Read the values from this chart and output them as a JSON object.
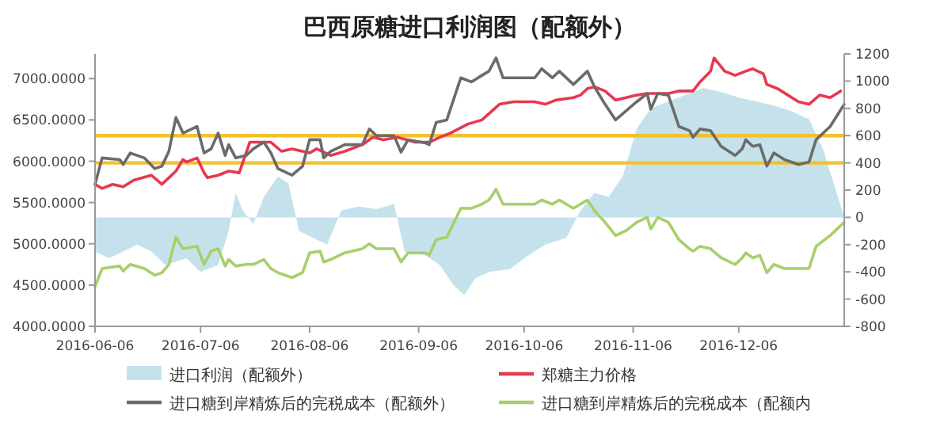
{
  "chart_data": {
    "type": "line",
    "title": "巴西原糖进口利润图（配额外）",
    "x": [
      "2016-06-06",
      "2016-06-08",
      "2016-06-13",
      "2016-06-14",
      "2016-06-16",
      "2016-06-20",
      "2016-06-23",
      "2016-06-25",
      "2016-06-27",
      "2016-06-29",
      "2016-07-01",
      "2016-07-05",
      "2016-07-07",
      "2016-07-09",
      "2016-07-11",
      "2016-07-13",
      "2016-07-14",
      "2016-07-16",
      "2016-07-19",
      "2016-07-21",
      "2016-07-24",
      "2016-07-26",
      "2016-07-28",
      "2016-08-01",
      "2016-08-04",
      "2016-08-06",
      "2016-08-09",
      "2016-08-10",
      "2016-08-12",
      "2016-08-16",
      "2016-08-21",
      "2016-08-23",
      "2016-08-25",
      "2016-08-30",
      "2016-09-01",
      "2016-09-03",
      "2016-09-08",
      "2016-09-09",
      "2016-09-11",
      "2016-09-14",
      "2016-09-18",
      "2016-09-21",
      "2016-09-24",
      "2016-09-26",
      "2016-09-28",
      "2016-09-30",
      "2016-10-05",
      "2016-10-09",
      "2016-10-11",
      "2016-10-14",
      "2016-10-16",
      "2016-10-20",
      "2016-10-24",
      "2016-10-26",
      "2016-10-29",
      "2016-11-01",
      "2016-11-04",
      "2016-11-07",
      "2016-11-10",
      "2016-11-11",
      "2016-11-13",
      "2016-11-16",
      "2016-11-19",
      "2016-11-22",
      "2016-11-23",
      "2016-11-25",
      "2016-11-28",
      "2016-12-01",
      "2016-12-05",
      "2016-12-07",
      "2016-12-08",
      "2016-12-10",
      "2016-12-12",
      "2016-12-14",
      "2016-12-16",
      "2016-12-19",
      "2016-12-23",
      "2016-12-26",
      "2016-12-28",
      "2017-01-01",
      "2017-01-05"
    ],
    "series": [
      {
        "name": "进口利润（配额外）",
        "type": "area",
        "axis": "y2",
        "color": "#c5e2ec",
        "x": [
          "2016-06-06",
          "2016-06-10",
          "2016-06-14",
          "2016-06-18",
          "2016-06-22",
          "2016-06-26",
          "2016-07-02",
          "2016-07-06",
          "2016-07-11",
          "2016-07-14",
          "2016-07-16",
          "2016-07-18",
          "2016-07-21",
          "2016-07-24",
          "2016-07-28",
          "2016-07-31",
          "2016-08-03",
          "2016-08-07",
          "2016-08-11",
          "2016-08-15",
          "2016-08-20",
          "2016-08-25",
          "2016-08-30",
          "2016-09-02",
          "2016-09-08",
          "2016-09-12",
          "2016-09-16",
          "2016-09-19",
          "2016-09-22",
          "2016-09-26",
          "2016-10-02",
          "2016-10-06",
          "2016-10-12",
          "2016-10-18",
          "2016-10-22",
          "2016-10-26",
          "2016-10-30",
          "2016-11-03",
          "2016-11-07",
          "2016-11-11",
          "2016-11-16",
          "2016-11-21",
          "2016-11-26",
          "2016-12-01",
          "2016-12-06",
          "2016-12-11",
          "2016-12-16",
          "2016-12-21",
          "2016-12-26",
          "2016-12-30",
          "2017-01-02",
          "2017-01-05"
        ],
        "values": [
          -250,
          -300,
          -250,
          -200,
          -250,
          -350,
          -300,
          -400,
          -350,
          -100,
          180,
          50,
          -50,
          150,
          300,
          250,
          -100,
          -150,
          -200,
          50,
          80,
          60,
          100,
          -250,
          -280,
          -350,
          -500,
          -570,
          -450,
          -400,
          -380,
          -300,
          -200,
          -150,
          50,
          180,
          150,
          300,
          650,
          800,
          850,
          900,
          950,
          920,
          880,
          850,
          820,
          780,
          720,
          500,
          250,
          0
        ]
      },
      {
        "name": "郑糖主力价格",
        "color": "#e8384f",
        "x": [
          "2016-06-06",
          "2016-06-08",
          "2016-06-11",
          "2016-06-14",
          "2016-06-17",
          "2016-06-22",
          "2016-06-25",
          "2016-06-27",
          "2016-06-29",
          "2016-07-01",
          "2016-07-02",
          "2016-07-05",
          "2016-07-07",
          "2016-07-08",
          "2016-07-11",
          "2016-07-14",
          "2016-07-17",
          "2016-07-20",
          "2016-07-23",
          "2016-07-26",
          "2016-07-29",
          "2016-08-01",
          "2016-08-06",
          "2016-08-08",
          "2016-08-12",
          "2016-08-16",
          "2016-08-21",
          "2016-08-24",
          "2016-08-27",
          "2016-08-31",
          "2016-09-05",
          "2016-09-09",
          "2016-09-12",
          "2016-09-15",
          "2016-09-20",
          "2016-09-24",
          "2016-09-29",
          "2016-10-03",
          "2016-10-09",
          "2016-10-12",
          "2016-10-15",
          "2016-10-20",
          "2016-10-22",
          "2016-10-24",
          "2016-10-26",
          "2016-10-29",
          "2016-11-01",
          "2016-11-04",
          "2016-11-07",
          "2016-11-10",
          "2016-11-13",
          "2016-11-16",
          "2016-11-19",
          "2016-11-23",
          "2016-11-25",
          "2016-11-28",
          "2016-11-29",
          "2016-12-02",
          "2016-12-05",
          "2016-12-08",
          "2016-12-10",
          "2016-12-13",
          "2016-12-14",
          "2016-12-17",
          "2016-12-20",
          "2016-12-23",
          "2016-12-26",
          "2016-12-29",
          "2017-01-01",
          "2017-01-04"
        ],
        "values": [
          5720,
          5670,
          5720,
          5690,
          5770,
          5830,
          5720,
          5800,
          5880,
          6020,
          5990,
          6040,
          5860,
          5800,
          5830,
          5880,
          5860,
          6230,
          6230,
          6230,
          6120,
          6150,
          6100,
          6150,
          6070,
          6120,
          6200,
          6290,
          6260,
          6290,
          6230,
          6230,
          6290,
          6340,
          6450,
          6500,
          6690,
          6720,
          6720,
          6690,
          6740,
          6770,
          6800,
          6880,
          6900,
          6850,
          6740,
          6770,
          6800,
          6820,
          6820,
          6820,
          6850,
          6850,
          6960,
          7090,
          7250,
          7090,
          7040,
          7090,
          7120,
          7060,
          6930,
          6880,
          6800,
          6720,
          6690,
          6800,
          6770,
          6850
        ]
      },
      {
        "name": "进口糖到岸精炼后的完税成本（配额外）",
        "color": "#6b6b6b",
        "values": [
          5720,
          6040,
          6020,
          5960,
          6100,
          6040,
          5910,
          5940,
          6120,
          6530,
          6340,
          6420,
          6100,
          6150,
          6340,
          6070,
          6200,
          6040,
          6070,
          6150,
          6230,
          6100,
          5910,
          5830,
          5940,
          6260,
          6260,
          6040,
          6120,
          6200,
          6200,
          6390,
          6310,
          6310,
          6110,
          6260,
          6220,
          6200,
          6470,
          6500,
          7010,
          6960,
          7040,
          7090,
          7250,
          7010,
          7010,
          7010,
          7120,
          7010,
          7090,
          6930,
          7090,
          6900,
          6690,
          6500,
          6610,
          6720,
          6820,
          6630,
          6820,
          6800,
          6420,
          6370,
          6290,
          6390,
          6370,
          6180,
          6070,
          6150,
          6260,
          6180,
          6200,
          5940,
          6100,
          6020,
          5960,
          5990,
          6260,
          6420,
          6690
        ]
      },
      {
        "name": "进口糖到岸精炼后的完税成本（配额内",
        "color": "#a8cf6a",
        "values": [
          4480,
          4700,
          4730,
          4670,
          4750,
          4700,
          4620,
          4650,
          4750,
          5080,
          4940,
          4970,
          4750,
          4910,
          4940,
          4730,
          4810,
          4730,
          4750,
          4750,
          4810,
          4700,
          4650,
          4590,
          4650,
          4890,
          4910,
          4780,
          4810,
          4890,
          4940,
          5000,
          4940,
          4940,
          4780,
          4890,
          4890,
          4860,
          5050,
          5080,
          5430,
          5430,
          5480,
          5530,
          5660,
          5480,
          5480,
          5480,
          5530,
          5480,
          5530,
          5430,
          5530,
          5400,
          5260,
          5100,
          5160,
          5260,
          5320,
          5180,
          5320,
          5260,
          5050,
          4940,
          4910,
          4970,
          4940,
          4830,
          4750,
          4830,
          4890,
          4830,
          4860,
          4650,
          4750,
          4700,
          4700,
          4700,
          4970,
          5100,
          5260
        ]
      }
    ],
    "xlim": [
      "2016-06-06",
      "2017-01-05"
    ],
    "xticks": [
      "2016-06-06",
      "2016-07-06",
      "2016-08-06",
      "2016-09-06",
      "2016-10-06",
      "2016-11-06",
      "2016-12-06"
    ],
    "ylim": [
      4000,
      7300
    ],
    "yticks": [
      {
        "value": 4000,
        "label": "4000.0000"
      },
      {
        "value": 4500,
        "label": "4500.0000"
      },
      {
        "value": 5000,
        "label": "5000.0000"
      },
      {
        "value": 5500,
        "label": "5500.0000"
      },
      {
        "value": 6000,
        "label": "6000.0000"
      },
      {
        "value": 6500,
        "label": "6500.0000"
      },
      {
        "value": 7000,
        "label": "7000.0000"
      }
    ],
    "y2lim": [
      -800,
      1200
    ],
    "y2ticks": [
      -800,
      -600,
      -400,
      -200,
      0,
      200,
      400,
      600,
      800,
      1000,
      1200
    ],
    "ref_lines": [
      {
        "axis": "y2",
        "value": 600,
        "color": "#f2c12e"
      },
      {
        "axis": "y2",
        "value": 400,
        "color": "#f2c12e"
      }
    ],
    "legend": "bottom"
  }
}
